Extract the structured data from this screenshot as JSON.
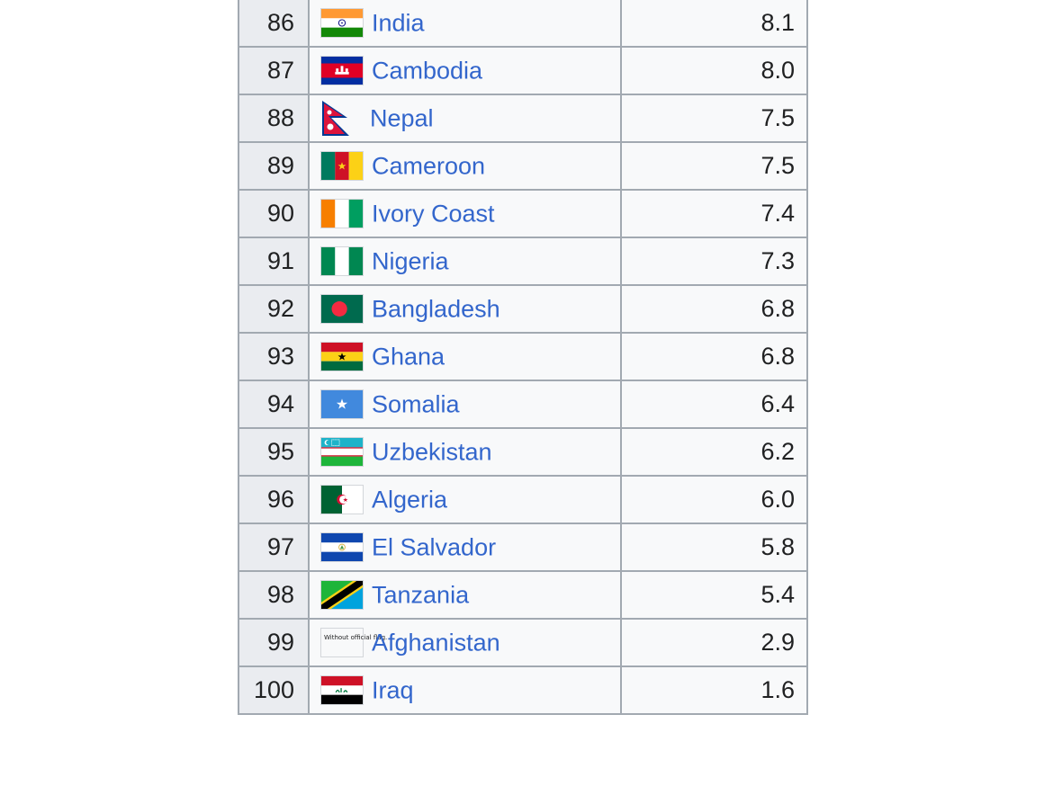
{
  "table": {
    "rows": [
      {
        "rank": "86",
        "country": "India",
        "value": "8.1",
        "flag_icon": "india-flag"
      },
      {
        "rank": "87",
        "country": "Cambodia",
        "value": "8.0",
        "flag_icon": "cambodia-flag"
      },
      {
        "rank": "88",
        "country": "Nepal",
        "value": "7.5",
        "flag_icon": "nepal-flag"
      },
      {
        "rank": "89",
        "country": "Cameroon",
        "value": "7.5",
        "flag_icon": "cameroon-flag"
      },
      {
        "rank": "90",
        "country": "Ivory Coast",
        "value": "7.4",
        "flag_icon": "ivory-coast-flag"
      },
      {
        "rank": "91",
        "country": "Nigeria",
        "value": "7.3",
        "flag_icon": "nigeria-flag"
      },
      {
        "rank": "92",
        "country": "Bangladesh",
        "value": "6.8",
        "flag_icon": "bangladesh-flag"
      },
      {
        "rank": "93",
        "country": "Ghana",
        "value": "6.8",
        "flag_icon": "ghana-flag"
      },
      {
        "rank": "94",
        "country": "Somalia",
        "value": "6.4",
        "flag_icon": "somalia-flag"
      },
      {
        "rank": "95",
        "country": "Uzbekistan",
        "value": "6.2",
        "flag_icon": "uzbekistan-flag"
      },
      {
        "rank": "96",
        "country": "Algeria",
        "value": "6.0",
        "flag_icon": "algeria-flag"
      },
      {
        "rank": "97",
        "country": "El Salvador",
        "value": "5.8",
        "flag_icon": "el-salvador-flag"
      },
      {
        "rank": "98",
        "country": "Tanzania",
        "value": "5.4",
        "flag_icon": "tanzania-flag"
      },
      {
        "rank": "99",
        "country": "Afghanistan",
        "value": "2.9",
        "flag_icon": "afghanistan-no-flag"
      },
      {
        "rank": "100",
        "country": "Iraq",
        "value": "1.6",
        "flag_icon": "iraq-flag"
      }
    ],
    "no_flag_note": "Without official flag."
  },
  "colors": {
    "link": "#3366cc",
    "border": "#a2a9b1",
    "rank_bg": "#eaecf0",
    "cell_bg": "#f8f9fa"
  }
}
